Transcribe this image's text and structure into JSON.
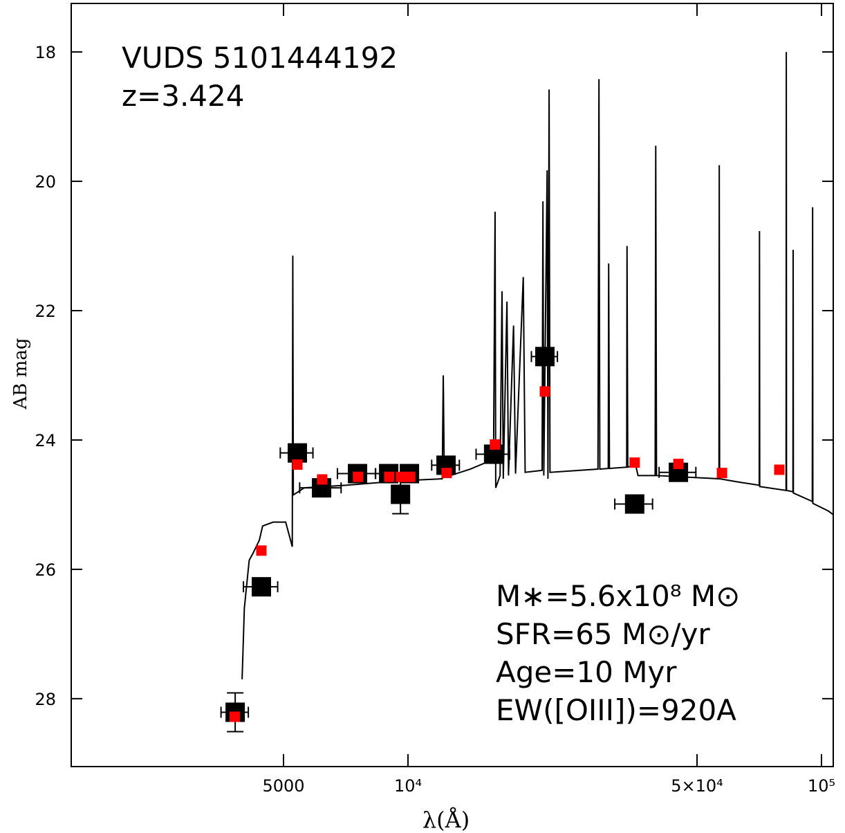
{
  "chart_data": {
    "type": "scatter",
    "title": "VUDS 5101444192",
    "subtitle": "z=3.424",
    "annotations": [
      "M∗=5.6x10⁸ M⊙",
      "SFR=65 M⊙/yr",
      "Age=10 Myr",
      "EW([OIII])=920A"
    ],
    "x_label": "λ(Å)",
    "y_label": "AB mag",
    "xscale": "log",
    "xlim": [
      1533,
      106760
    ],
    "ylim": [
      29.05,
      17.25
    ],
    "xticks": [
      5000,
      {
        "value": 10000,
        "label": "10⁴"
      },
      {
        "value": 50000,
        "label": "5×10⁴"
      },
      {
        "value": 100000,
        "label": "10⁵"
      }
    ],
    "yticks": [
      18,
      20,
      22,
      24,
      26,
      28
    ],
    "series": [
      {
        "type": "line",
        "color": "#000000",
        "x": [
          3970,
          4020,
          4130,
          4220,
          4370,
          4450,
          4720,
          5060,
          5200,
          5250,
          5265,
          5280,
          5610,
          7070,
          9620,
          12100,
          12170,
          12240,
          14140,
          16100,
          16240,
          16300,
          16700,
          16880,
          17000,
          17350,
          17500,
          18000,
          18200,
          19000,
          19200,
          21100,
          21200,
          21300,
          21700,
          21800,
          21940,
          22050,
          28800,
          28960,
          29100,
          30500,
          30570,
          30700,
          33800,
          33860,
          34000,
          35500,
          36000,
          39600,
          39730,
          39900,
          56500,
          56590,
          56700,
          63000,
          70700,
          70800,
          70900,
          82100,
          82200,
          82300,
          85300,
          85400,
          85500,
          95000,
          95180,
          95300,
          104000,
          106500
        ],
        "values": [
          27.7,
          26.6,
          25.86,
          25.75,
          25.55,
          25.33,
          25.27,
          25.27,
          25.55,
          25.65,
          21.15,
          24.85,
          24.74,
          24.7,
          24.63,
          24.6,
          23.0,
          24.58,
          24.45,
          24.3,
          20.47,
          24.74,
          24.55,
          21.7,
          24.6,
          21.86,
          24.55,
          22.23,
          24.52,
          21.48,
          24.5,
          24.47,
          20.31,
          24.55,
          19.83,
          24.6,
          18.58,
          24.5,
          24.45,
          18.42,
          24.45,
          24.44,
          21.27,
          24.44,
          24.42,
          21.0,
          24.42,
          24.38,
          24.55,
          24.55,
          19.45,
          24.55,
          24.6,
          19.75,
          24.6,
          24.65,
          24.7,
          20.77,
          24.72,
          24.78,
          18.0,
          24.78,
          24.8,
          21.06,
          24.82,
          24.95,
          20.4,
          24.98,
          25.1,
          25.15
        ]
      },
      {
        "type": "scatter",
        "marker": "square",
        "color": "#000000",
        "x": [
          3820,
          4420,
          5400,
          6180,
          7550,
          8980,
          10080,
          9590,
          12360,
          16110,
          21430,
          35330,
          45080
        ],
        "values": [
          28.21,
          26.27,
          24.2,
          24.74,
          24.52,
          24.52,
          24.52,
          24.84,
          24.39,
          24.22,
          22.71,
          24.99,
          24.5
        ],
        "xerr": [
          290,
          420,
          490,
          710,
          800,
          640,
          480,
          200,
          950,
          1500,
          1550,
          3700,
          4600
        ],
        "yerr": [
          0.3,
          0.1,
          0.05,
          0.05,
          0.05,
          0.05,
          0.05,
          0.3,
          0.05,
          0.05,
          0.05,
          0.05,
          0.05
        ]
      },
      {
        "type": "scatter",
        "marker": "square-small",
        "color": "#ff0000",
        "x": [
          3810,
          4420,
          5400,
          6200,
          7570,
          9010,
          9620,
          10120,
          12400,
          16230,
          21430,
          35330,
          45080,
          57450,
          79060
        ],
        "values": [
          28.28,
          25.71,
          24.38,
          24.61,
          24.57,
          24.57,
          24.57,
          24.57,
          24.51,
          24.07,
          23.25,
          24.35,
          24.37,
          24.51,
          24.46
        ]
      }
    ]
  }
}
